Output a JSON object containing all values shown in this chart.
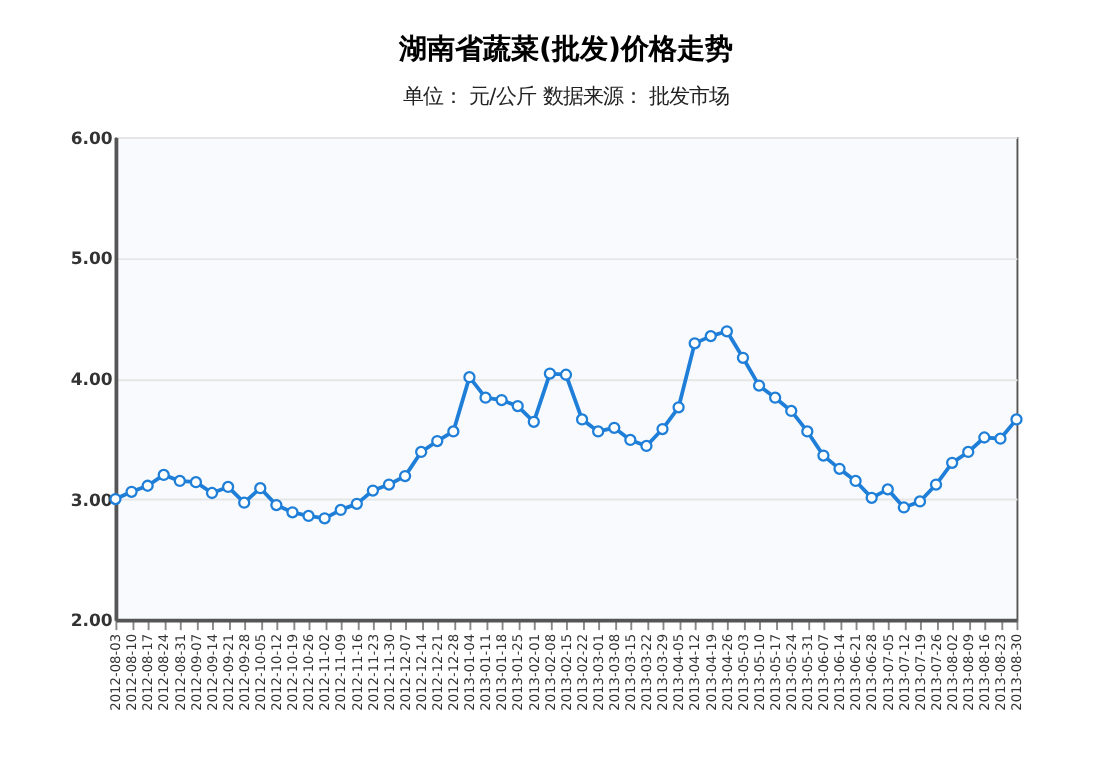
{
  "chart_data": {
    "type": "line",
    "title": "湖南省蔬菜(批发)价格走势",
    "subtitle": "单位：  元/公斤        数据来源：  批发市场",
    "categories": [
      "2012-08-03",
      "2012-08-10",
      "2012-08-17",
      "2012-08-24",
      "2012-08-31",
      "2012-09-07",
      "2012-09-14",
      "2012-09-21",
      "2012-09-28",
      "2012-10-05",
      "2012-10-12",
      "2012-10-19",
      "2012-10-26",
      "2012-11-02",
      "2012-11-09",
      "2012-11-16",
      "2012-11-23",
      "2012-11-30",
      "2012-12-07",
      "2012-12-14",
      "2012-12-21",
      "2012-12-28",
      "2013-01-04",
      "2013-01-11",
      "2013-01-18",
      "2013-01-25",
      "2013-02-01",
      "2013-02-08",
      "2013-02-15",
      "2013-02-22",
      "2013-03-01",
      "2013-03-08",
      "2013-03-15",
      "2013-03-22",
      "2013-03-29",
      "2013-04-05",
      "2013-04-12",
      "2013-04-19",
      "2013-04-26",
      "2013-05-03",
      "2013-05-10",
      "2013-05-17",
      "2013-05-24",
      "2013-05-31",
      "2013-06-07",
      "2013-06-14",
      "2013-06-21",
      "2013-06-28",
      "2013-07-05",
      "2013-07-12",
      "2013-07-19",
      "2013-07-26",
      "2013-08-02",
      "2013-08-09",
      "2013-08-16",
      "2013-08-23",
      "2013-08-30"
    ],
    "series": [
      {
        "color": "#1f7fd8",
        "values": [
          3.0,
          3.06,
          3.11,
          3.2,
          3.15,
          3.14,
          3.05,
          3.1,
          2.97,
          3.09,
          2.95,
          2.89,
          2.86,
          2.84,
          2.91,
          2.96,
          3.07,
          3.12,
          3.19,
          3.39,
          3.48,
          3.56,
          4.01,
          3.84,
          3.82,
          3.77,
          3.64,
          4.04,
          4.03,
          3.66,
          3.56,
          3.59,
          3.49,
          3.44,
          3.58,
          3.76,
          4.29,
          4.35,
          4.39,
          4.17,
          3.94,
          3.84,
          3.73,
          3.56,
          3.36,
          3.25,
          3.15,
          3.01,
          3.08,
          2.93,
          2.98,
          3.12,
          3.3,
          3.39,
          3.51,
          3.5,
          3.66
        ]
      }
    ],
    "ylim": [
      2,
      6
    ],
    "yticks": [
      {
        "value": 2,
        "label": "2.00"
      },
      {
        "value": 3,
        "label": "3.00"
      },
      {
        "value": 4,
        "label": "4.00"
      },
      {
        "value": 5,
        "label": "5.00"
      },
      {
        "value": 6,
        "label": "6.00"
      }
    ],
    "grid": "y",
    "marker": "circle",
    "line_style": "solid"
  }
}
